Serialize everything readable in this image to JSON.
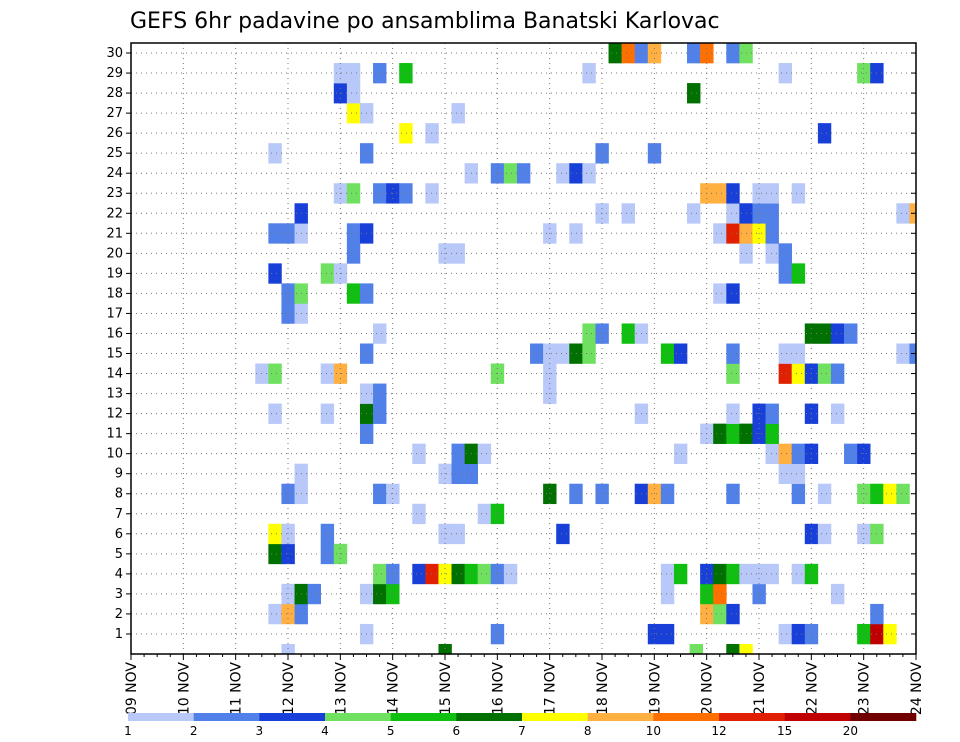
{
  "chart_data": {
    "type": "heatmap",
    "title": "GEFS 6hr padavine po ansamblima Banatski Karlovac",
    "y_ticks": [
      "1",
      "2",
      "3",
      "4",
      "5",
      "6",
      "7",
      "8",
      "9",
      "10",
      "11",
      "12",
      "13",
      "14",
      "15",
      "16",
      "17",
      "18",
      "19",
      "20",
      "21",
      "22",
      "23",
      "24",
      "25",
      "26",
      "27",
      "28",
      "29",
      "30"
    ],
    "ylim": [
      0,
      30
    ],
    "x_ticks": [
      "09 NOV",
      "10 NOV",
      "11 NOV",
      "12 NOV",
      "13 NOV",
      "14 NOV",
      "15 NOV",
      "16 NOV",
      "17 NOV",
      "18 NOV",
      "19 NOV",
      "20 NOV",
      "21 NOV",
      "22 NOV",
      "23 NOV",
      "24 NOV"
    ],
    "x_start_day": 9,
    "x_end_day": 24,
    "grid": true,
    "colorbar": {
      "labels": [
        "1",
        "2",
        "3",
        "4",
        "5",
        "6",
        "7",
        "8",
        "10",
        "12",
        "15",
        "20"
      ],
      "colors": [
        "#b8c8f8",
        "#5080e8",
        "#1840d8",
        "#70e060",
        "#10c010",
        "#007000",
        "#ffff00",
        "#ffb040",
        "#ff7000",
        "#e02000",
        "#c00000",
        "#700000"
      ]
    },
    "cells": [
      [
        12.0,
        0,
        1
      ],
      [
        15.0,
        0,
        6
      ],
      [
        19.8,
        0,
        4
      ],
      [
        20.5,
        0,
        6
      ],
      [
        20.75,
        0,
        7
      ],
      [
        13.5,
        1,
        1
      ],
      [
        16.0,
        1,
        2
      ],
      [
        19.0,
        1,
        3
      ],
      [
        19.25,
        1,
        3
      ],
      [
        21.5,
        1,
        1
      ],
      [
        21.75,
        1,
        3
      ],
      [
        22.0,
        1,
        2
      ],
      [
        23.0,
        1,
        5
      ],
      [
        23.25,
        1,
        11
      ],
      [
        23.5,
        1,
        7
      ],
      [
        11.75,
        2,
        1
      ],
      [
        12.0,
        2,
        8
      ],
      [
        12.25,
        2,
        2
      ],
      [
        20.0,
        2,
        8
      ],
      [
        20.25,
        2,
        4
      ],
      [
        20.5,
        2,
        3
      ],
      [
        23.25,
        2,
        2
      ],
      [
        12.0,
        3,
        1
      ],
      [
        12.25,
        3,
        6
      ],
      [
        12.5,
        3,
        2
      ],
      [
        13.5,
        3,
        1
      ],
      [
        13.75,
        3,
        6
      ],
      [
        14.0,
        3,
        5
      ],
      [
        19.25,
        3,
        1
      ],
      [
        20.0,
        3,
        5
      ],
      [
        20.25,
        3,
        9
      ],
      [
        21.0,
        3,
        2
      ],
      [
        22.5,
        3,
        1
      ],
      [
        13.75,
        4,
        4
      ],
      [
        14.0,
        4,
        2
      ],
      [
        14.5,
        4,
        3
      ],
      [
        14.75,
        4,
        10
      ],
      [
        15.0,
        4,
        7
      ],
      [
        15.25,
        4,
        6
      ],
      [
        15.5,
        4,
        5
      ],
      [
        15.75,
        4,
        4
      ],
      [
        16.0,
        4,
        2
      ],
      [
        16.25,
        4,
        1
      ],
      [
        19.25,
        4,
        1
      ],
      [
        19.5,
        4,
        5
      ],
      [
        20.0,
        4,
        3
      ],
      [
        20.25,
        4,
        6
      ],
      [
        20.5,
        4,
        5
      ],
      [
        20.75,
        4,
        1
      ],
      [
        21.0,
        4,
        1
      ],
      [
        21.25,
        4,
        1
      ],
      [
        21.75,
        4,
        1
      ],
      [
        22.0,
        4,
        5
      ],
      [
        11.75,
        5,
        6
      ],
      [
        12.0,
        5,
        3
      ],
      [
        12.75,
        5,
        2
      ],
      [
        13.0,
        5,
        4
      ],
      [
        11.75,
        6,
        7
      ],
      [
        12.0,
        6,
        1
      ],
      [
        12.75,
        6,
        2
      ],
      [
        15.0,
        6,
        1
      ],
      [
        15.25,
        6,
        1
      ],
      [
        17.25,
        6,
        3
      ],
      [
        22.0,
        6,
        3
      ],
      [
        22.25,
        6,
        1
      ],
      [
        23.0,
        6,
        1
      ],
      [
        23.25,
        6,
        4
      ],
      [
        14.5,
        7,
        1
      ],
      [
        15.75,
        7,
        1
      ],
      [
        16.0,
        7,
        5
      ],
      [
        12.0,
        8,
        2
      ],
      [
        12.25,
        8,
        1
      ],
      [
        13.75,
        8,
        2
      ],
      [
        14.0,
        8,
        1
      ],
      [
        17.0,
        8,
        6
      ],
      [
        17.5,
        8,
        2
      ],
      [
        18.0,
        8,
        2
      ],
      [
        18.75,
        8,
        3
      ],
      [
        19.0,
        8,
        8
      ],
      [
        19.25,
        8,
        2
      ],
      [
        20.5,
        8,
        2
      ],
      [
        21.75,
        8,
        2
      ],
      [
        22.25,
        8,
        1
      ],
      [
        23.0,
        8,
        4
      ],
      [
        23.25,
        8,
        5
      ],
      [
        23.5,
        8,
        7
      ],
      [
        23.75,
        8,
        4
      ],
      [
        12.25,
        9,
        1
      ],
      [
        15.0,
        9,
        1
      ],
      [
        15.25,
        9,
        2
      ],
      [
        15.5,
        9,
        2
      ],
      [
        21.5,
        9,
        1
      ],
      [
        21.75,
        9,
        1
      ],
      [
        14.5,
        10,
        1
      ],
      [
        15.25,
        10,
        2
      ],
      [
        15.5,
        10,
        6
      ],
      [
        15.75,
        10,
        1
      ],
      [
        19.5,
        10,
        1
      ],
      [
        21.25,
        10,
        1
      ],
      [
        21.5,
        10,
        8
      ],
      [
        21.75,
        10,
        2
      ],
      [
        22.0,
        10,
        3
      ],
      [
        22.75,
        10,
        2
      ],
      [
        23.0,
        10,
        3
      ],
      [
        13.5,
        11,
        2
      ],
      [
        20.0,
        11,
        1
      ],
      [
        20.25,
        11,
        6
      ],
      [
        20.5,
        11,
        5
      ],
      [
        20.75,
        11,
        6
      ],
      [
        21.0,
        11,
        3
      ],
      [
        21.25,
        11,
        5
      ],
      [
        11.75,
        12,
        1
      ],
      [
        12.75,
        12,
        1
      ],
      [
        13.5,
        12,
        6
      ],
      [
        13.75,
        12,
        2
      ],
      [
        18.75,
        12,
        1
      ],
      [
        20.5,
        12,
        1
      ],
      [
        21.0,
        12,
        3
      ],
      [
        21.25,
        12,
        2
      ],
      [
        22.0,
        12,
        3
      ],
      [
        22.5,
        12,
        1
      ],
      [
        13.5,
        13,
        1
      ],
      [
        13.75,
        13,
        2
      ],
      [
        17.0,
        13,
        1
      ],
      [
        11.5,
        14,
        1
      ],
      [
        11.75,
        14,
        4
      ],
      [
        12.75,
        14,
        1
      ],
      [
        13.0,
        14,
        8
      ],
      [
        16.0,
        14,
        4
      ],
      [
        17.0,
        14,
        1
      ],
      [
        20.5,
        14,
        4
      ],
      [
        21.5,
        14,
        10
      ],
      [
        21.75,
        14,
        7
      ],
      [
        22.0,
        14,
        3
      ],
      [
        22.25,
        14,
        4
      ],
      [
        22.5,
        14,
        2
      ],
      [
        13.5,
        15,
        2
      ],
      [
        16.75,
        15,
        2
      ],
      [
        17.0,
        15,
        1
      ],
      [
        17.25,
        15,
        1
      ],
      [
        17.5,
        15,
        6
      ],
      [
        17.75,
        15,
        4
      ],
      [
        19.25,
        15,
        5
      ],
      [
        19.5,
        15,
        3
      ],
      [
        20.5,
        15,
        2
      ],
      [
        21.5,
        15,
        1
      ],
      [
        21.75,
        15,
        1
      ],
      [
        23.75,
        15,
        1
      ],
      [
        24.0,
        15,
        2
      ],
      [
        13.75,
        16,
        1
      ],
      [
        17.75,
        16,
        4
      ],
      [
        18.0,
        16,
        2
      ],
      [
        18.5,
        16,
        5
      ],
      [
        18.75,
        16,
        1
      ],
      [
        22.0,
        16,
        6
      ],
      [
        22.25,
        16,
        6
      ],
      [
        22.5,
        16,
        3
      ],
      [
        22.75,
        16,
        2
      ],
      [
        12.0,
        17,
        2
      ],
      [
        12.25,
        17,
        1
      ],
      [
        12.0,
        18,
        2
      ],
      [
        12.25,
        18,
        4
      ],
      [
        13.25,
        18,
        5
      ],
      [
        13.5,
        18,
        2
      ],
      [
        20.25,
        18,
        1
      ],
      [
        20.5,
        18,
        3
      ],
      [
        11.75,
        19,
        3
      ],
      [
        12.75,
        19,
        4
      ],
      [
        13.0,
        19,
        1
      ],
      [
        21.5,
        19,
        2
      ],
      [
        21.75,
        19,
        5
      ],
      [
        13.25,
        20,
        2
      ],
      [
        15.0,
        20,
        1
      ],
      [
        15.25,
        20,
        1
      ],
      [
        20.75,
        20,
        1
      ],
      [
        21.25,
        20,
        1
      ],
      [
        21.5,
        20,
        2
      ],
      [
        11.75,
        21,
        2
      ],
      [
        12.0,
        21,
        2
      ],
      [
        12.25,
        21,
        1
      ],
      [
        13.25,
        21,
        2
      ],
      [
        13.5,
        21,
        3
      ],
      [
        17.0,
        21,
        1
      ],
      [
        17.5,
        21,
        1
      ],
      [
        20.25,
        21,
        1
      ],
      [
        20.5,
        21,
        10
      ],
      [
        20.75,
        21,
        8
      ],
      [
        21.0,
        21,
        7
      ],
      [
        21.25,
        21,
        2
      ],
      [
        12.25,
        22,
        3
      ],
      [
        18.0,
        22,
        1
      ],
      [
        18.5,
        22,
        1
      ],
      [
        19.75,
        22,
        1
      ],
      [
        20.5,
        22,
        1
      ],
      [
        20.75,
        22,
        3
      ],
      [
        21.0,
        22,
        2
      ],
      [
        21.25,
        22,
        2
      ],
      [
        23.75,
        22,
        1
      ],
      [
        24.0,
        22,
        8
      ],
      [
        13.0,
        23,
        1
      ],
      [
        13.25,
        23,
        4
      ],
      [
        13.75,
        23,
        2
      ],
      [
        14.0,
        23,
        3
      ],
      [
        14.25,
        23,
        2
      ],
      [
        14.75,
        23,
        1
      ],
      [
        20.0,
        23,
        8
      ],
      [
        20.25,
        23,
        8
      ],
      [
        20.5,
        23,
        3
      ],
      [
        21.0,
        23,
        1
      ],
      [
        21.25,
        23,
        1
      ],
      [
        21.75,
        23,
        1
      ],
      [
        15.5,
        24,
        1
      ],
      [
        16.0,
        24,
        2
      ],
      [
        16.25,
        24,
        4
      ],
      [
        16.5,
        24,
        2
      ],
      [
        17.25,
        24,
        1
      ],
      [
        17.5,
        24,
        3
      ],
      [
        17.75,
        24,
        1
      ],
      [
        11.75,
        25,
        1
      ],
      [
        13.5,
        25,
        2
      ],
      [
        18.0,
        25,
        2
      ],
      [
        19.0,
        25,
        2
      ],
      [
        14.25,
        26,
        7
      ],
      [
        14.75,
        26,
        1
      ],
      [
        22.25,
        26,
        3
      ],
      [
        13.25,
        27,
        7
      ],
      [
        13.5,
        27,
        1
      ],
      [
        15.25,
        27,
        1
      ],
      [
        13.0,
        28,
        3
      ],
      [
        13.25,
        28,
        1
      ],
      [
        19.75,
        28,
        6
      ],
      [
        13.0,
        29,
        1
      ],
      [
        13.25,
        29,
        1
      ],
      [
        13.75,
        29,
        2
      ],
      [
        14.25,
        29,
        5
      ],
      [
        17.75,
        29,
        1
      ],
      [
        21.5,
        29,
        1
      ],
      [
        23.0,
        29,
        4
      ],
      [
        23.25,
        29,
        3
      ],
      [
        18.25,
        30,
        6
      ],
      [
        18.5,
        30,
        9
      ],
      [
        18.75,
        30,
        2
      ],
      [
        19.0,
        30,
        8
      ],
      [
        19.75,
        30,
        2
      ],
      [
        20.0,
        30,
        9
      ],
      [
        20.5,
        30,
        2
      ],
      [
        20.75,
        30,
        4
      ]
    ]
  }
}
